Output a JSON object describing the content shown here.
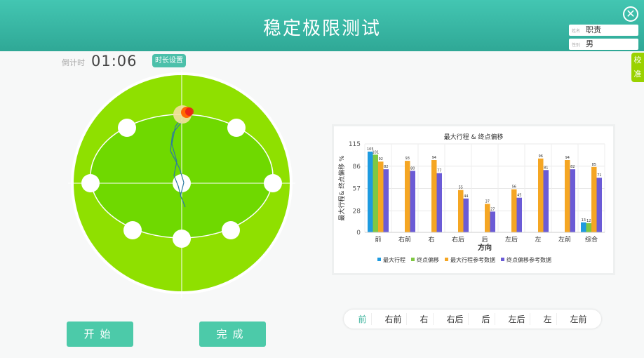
{
  "header": {
    "title": "稳定极限测试",
    "name_label": "姓名",
    "name_value": "职责",
    "gender_label": "性别",
    "gender_value": "男",
    "close_icon": "close-circle-icon"
  },
  "calibrate_label": "校准",
  "timer": {
    "label": "倒计时",
    "value": "01:06",
    "duration_button": "时长设置"
  },
  "buttons": {
    "start": "开始",
    "finish": "完成"
  },
  "direction_tabs": {
    "items": [
      "前",
      "右前",
      "右",
      "右后",
      "后",
      "左后",
      "左",
      "左前"
    ],
    "active": "前"
  },
  "colors": {
    "accent": "#4ccaa9",
    "outer_green": "#8fe000",
    "inner_green": "#6fd900"
  },
  "chart_data": {
    "type": "bar",
    "title": "最大行程 & 终点偏移",
    "xlabel": "方向",
    "ylabel": "最大行程& 终点偏移 %",
    "ylim": [
      0,
      115
    ],
    "yticks": [
      0,
      28,
      57,
      86,
      115
    ],
    "categories": [
      "前",
      "右前",
      "右",
      "右后",
      "后",
      "左后",
      "左",
      "左前",
      "综合"
    ],
    "legend_position": "bottom",
    "series": [
      {
        "name": "最大行程",
        "color": "#1e9be0",
        "values": [
          105,
          null,
          null,
          null,
          null,
          null,
          null,
          null,
          13
        ]
      },
      {
        "name": "终点偏移",
        "color": "#7fc843",
        "values": [
          101,
          null,
          null,
          null,
          null,
          null,
          null,
          null,
          12
        ]
      },
      {
        "name": "最大行程参考数据",
        "color": "#f5a623",
        "values": [
          92,
          93,
          94,
          55,
          37,
          56,
          96,
          94,
          85
        ]
      },
      {
        "name": "终点偏移参考数据",
        "color": "#6b5bd6",
        "values": [
          82,
          80,
          77,
          44,
          27,
          45,
          81,
          82,
          71
        ]
      }
    ]
  }
}
